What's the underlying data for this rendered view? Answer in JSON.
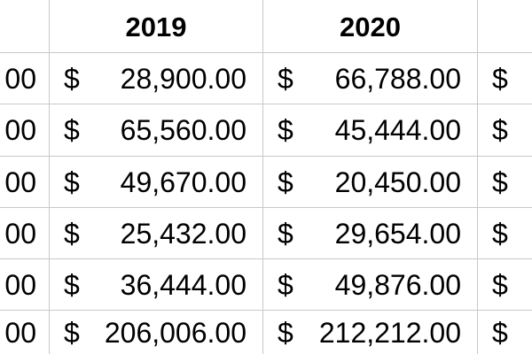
{
  "table": {
    "headers": [
      "",
      "2019",
      "2020",
      ""
    ],
    "currency_symbol": "$",
    "rows": [
      {
        "left_partial": "00",
        "col_2019": "28,900.00",
        "col_2020": "66,788.00"
      },
      {
        "left_partial": "00",
        "col_2019": "65,560.00",
        "col_2020": "45,444.00"
      },
      {
        "left_partial": "00",
        "col_2019": "49,670.00",
        "col_2020": "20,450.00"
      },
      {
        "left_partial": "00",
        "col_2019": "25,432.00",
        "col_2020": "29,654.00"
      },
      {
        "left_partial": "00",
        "col_2019": "36,444.00",
        "col_2020": "49,876.00"
      },
      {
        "left_partial": "00",
        "col_2019": "206,006.00",
        "col_2020": "212,212.00"
      }
    ]
  }
}
